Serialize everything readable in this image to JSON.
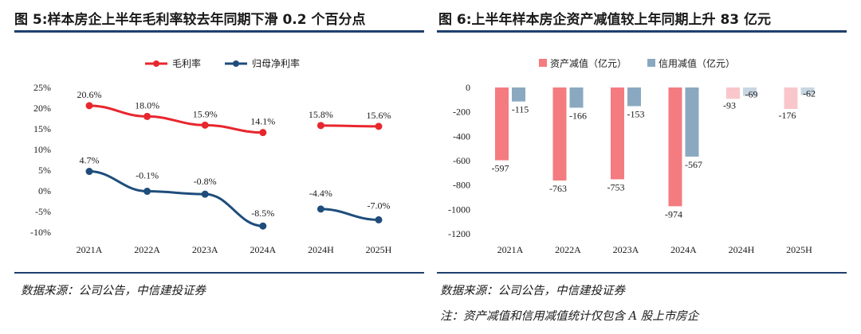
{
  "left": {
    "title": "图 5:样本房企上半年毛利率较去年同期下滑 0.2 个百分点",
    "source": "数据来源：公司公告，中信建投证券"
  },
  "right": {
    "title": "图 6:上半年样本房企资产减值较上年同期上升 83 亿元",
    "source": "数据来源：公司公告，中信建投证券",
    "note": "注：资产减值和信用减值统计仅包含 A 股上市房企"
  },
  "chart_data": [
    {
      "type": "line",
      "title": "图 5:样本房企上半年毛利率较去年同期下滑 0.2 个百分点",
      "categories": [
        "2021A",
        "2022A",
        "2023A",
        "2024A",
        "2024H",
        "2025H"
      ],
      "segments": [
        [
          0,
          3
        ],
        [
          4,
          5
        ]
      ],
      "series": [
        {
          "name": "毛利率",
          "color": "#e8262e",
          "values": [
            20.6,
            18.0,
            15.9,
            14.1,
            15.8,
            15.6
          ],
          "labels": [
            "20.6%",
            "18.0%",
            "15.9%",
            "14.1%",
            "15.8%",
            "15.6%"
          ]
        },
        {
          "name": "归母净利率",
          "color": "#1e4d7b",
          "values": [
            4.7,
            -0.1,
            -0.8,
            -8.5,
            -4.4,
            -7.0
          ],
          "labels": [
            "4.7%",
            "-0.1%",
            "-0.8%",
            "-8.5%",
            "-4.4%",
            "-7.0%"
          ]
        }
      ],
      "ylim": [
        -10,
        25
      ],
      "yticks": [
        25,
        20,
        15,
        10,
        5,
        0,
        -5,
        -10
      ],
      "ytick_labels": [
        "25%",
        "20%",
        "15%",
        "10%",
        "5%",
        "0%",
        "-5%",
        "-10%"
      ],
      "legend_position": "top-center"
    },
    {
      "type": "bar",
      "title": "图 6:上半年样本房企资产减值较上年同期上升 83 亿元",
      "categories": [
        "2021A",
        "2022A",
        "2023A",
        "2024A",
        "2024H",
        "2025H"
      ],
      "series": [
        {
          "name": "资产减值（亿元）",
          "color": "#f47b80",
          "faded_color": "#f9c7cb",
          "values": [
            -597,
            -763,
            -753,
            -974,
            -93,
            -176
          ],
          "labels": [
            "-597",
            "-763",
            "-753",
            "-974",
            "-93",
            "-176"
          ]
        },
        {
          "name": "信用减值（亿元）",
          "color": "#8aa9c0",
          "faded_color": "#c8d6e2",
          "values": [
            -115,
            -166,
            -153,
            -567,
            -69,
            -62
          ],
          "labels": [
            "-115",
            "-166",
            "-153",
            "-567",
            "-69",
            "-62"
          ]
        }
      ],
      "faded_categories": [
        4,
        5
      ],
      "ylim": [
        -1200,
        0
      ],
      "yticks": [
        0,
        -200,
        -400,
        -600,
        -800,
        -1000,
        -1200
      ],
      "ytick_labels": [
        "0",
        "-200",
        "-400",
        "-600",
        "-800",
        "-1000",
        "-1200"
      ],
      "legend_position": "top-center"
    }
  ]
}
